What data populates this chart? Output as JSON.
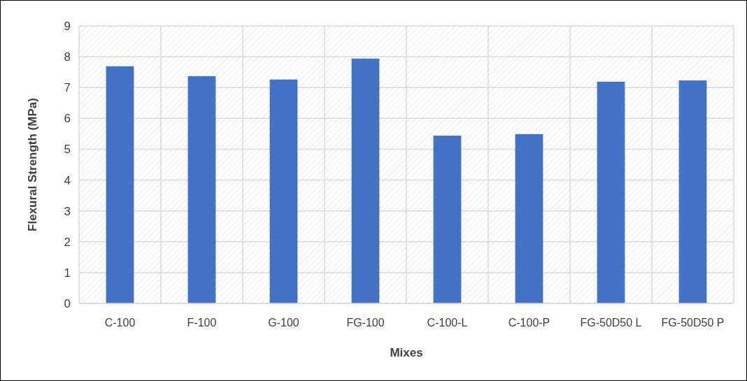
{
  "chart_data": {
    "type": "bar",
    "xlabel": "Mixes",
    "ylabel": "Flexural Strength (MPa)",
    "categories": [
      "C-100",
      "F-100",
      "G-100",
      "FG-100",
      "C-100-L",
      "C-100-P",
      "FG-50D50 L",
      "FG-50D50 P"
    ],
    "values": [
      7.69,
      7.37,
      7.26,
      7.94,
      5.44,
      5.49,
      7.19,
      7.23
    ],
    "color": "#4472c4",
    "ylim": [
      0,
      9
    ],
    "yticks": [
      0,
      1,
      2,
      3,
      4,
      5,
      6,
      7,
      8,
      9
    ],
    "grid": true
  }
}
